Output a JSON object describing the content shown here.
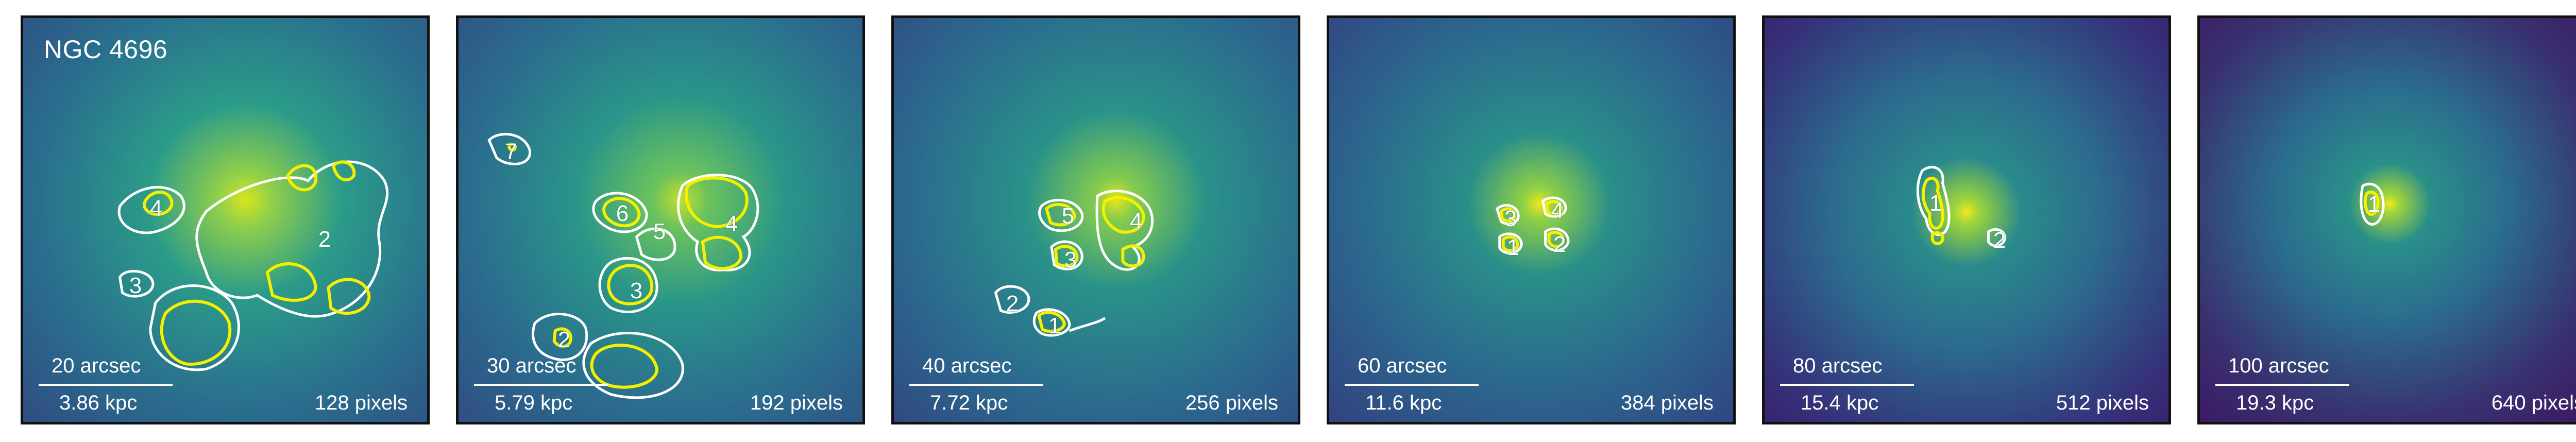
{
  "galaxy_label": "NGC 4696",
  "panels": [
    {
      "arcsec": "20 arcsec",
      "kpc": "3.86 kpc",
      "pixels": "128 pixels",
      "labels": [
        "2",
        "4",
        "3"
      ],
      "colors": {
        "outer": "#2e3b7e",
        "mid": "#2a8b8a",
        "core": "#b9de2c"
      }
    },
    {
      "arcsec": "30 arcsec",
      "kpc": "5.79 kpc",
      "pixels": "192 pixels",
      "labels": [
        "7",
        "6",
        "5",
        "4",
        "3",
        "2"
      ],
      "colors": {
        "outer": "#2e4182",
        "mid": "#2a8a8c",
        "core": "#a9da30"
      }
    },
    {
      "arcsec": "40 arcsec",
      "kpc": "7.72 kpc",
      "pixels": "256 pixels",
      "labels": [
        "5",
        "4",
        "3",
        "2",
        "1"
      ],
      "colors": {
        "outer": "#2f3f82",
        "mid": "#2b878d",
        "core": "#d2e21b"
      }
    },
    {
      "arcsec": "60 arcsec",
      "kpc": "11.6 kpc",
      "pixels": "384 pixels",
      "labels": [
        "3",
        "4",
        "1",
        "2"
      ],
      "colors": {
        "outer": "#323b7f",
        "mid": "#2c7f8e",
        "core": "#e3e418"
      }
    },
    {
      "arcsec": "80 arcsec",
      "kpc": "15.4 kpc",
      "pixels": "512 pixels",
      "labels": [
        "1",
        "2"
      ],
      "colors": {
        "outer": "#36206c",
        "mid": "#2a768e",
        "core": "#f0e51c"
      }
    },
    {
      "arcsec": "100 arcsec",
      "kpc": "19.3 kpc",
      "pixels": "640 pixels",
      "labels": [
        "1"
      ],
      "colors": {
        "outer": "#3b1b66",
        "mid": "#297a8e",
        "core": "#f5e61f"
      }
    }
  ],
  "contour_colors": {
    "white": "#ffffff",
    "yellow": "#f4f000"
  }
}
